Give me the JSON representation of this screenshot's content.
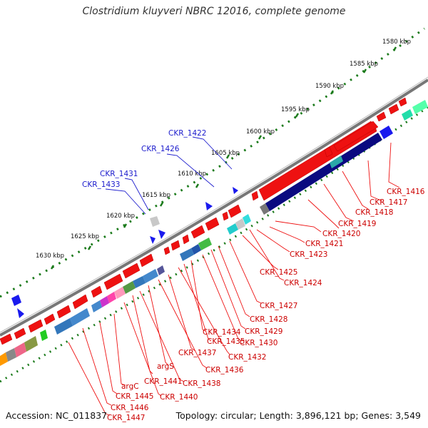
{
  "title": "Clostridium kluyveri NBRC 12016, complete genome",
  "accession": "Accession: NC_011837",
  "topology": "Topology: circular; Length: 3,896,121 bp; Genes: 3,549",
  "kbp_labels": [
    "1580 kbp",
    "1585 kbp",
    "1590 kbp",
    "1595 kbp",
    "1600 kbp",
    "1605 kbp",
    "1610 kbp",
    "1615 kbp",
    "1620 kbp",
    "1625 kbp",
    "1630 kbp"
  ],
  "blue_labels": [
    "CKR_1422",
    "CKR_1426",
    "CKR_1431",
    "CKR_1433"
  ],
  "red_labels": [
    "CKR_1416",
    "CKR_1417",
    "CKR_1418",
    "CKR_1419",
    "CKR_1420",
    "CKR_1421",
    "CKR_1423",
    "CKR_1425",
    "CKR_1424",
    "CKR_1427",
    "CKR_1428",
    "CKR_1429",
    "CKR_1430",
    "CKR_1434",
    "CKR_1435",
    "CKR_1432",
    "CKR_1437",
    "CKR_1436",
    "argS",
    "CKR_1438",
    "CKR_1441",
    "CKR_1440",
    "argC",
    "CKR_1445",
    "CKR_1446",
    "CKR_1447"
  ],
  "colors": {
    "forward": "#ee1111",
    "reverse_dark": "#0a0a80",
    "blue": "#1a1aee",
    "backbone": "#888888",
    "tick": "#1a7a1a",
    "label_red": "#cc0000",
    "label_blue": "#1a1acc"
  }
}
